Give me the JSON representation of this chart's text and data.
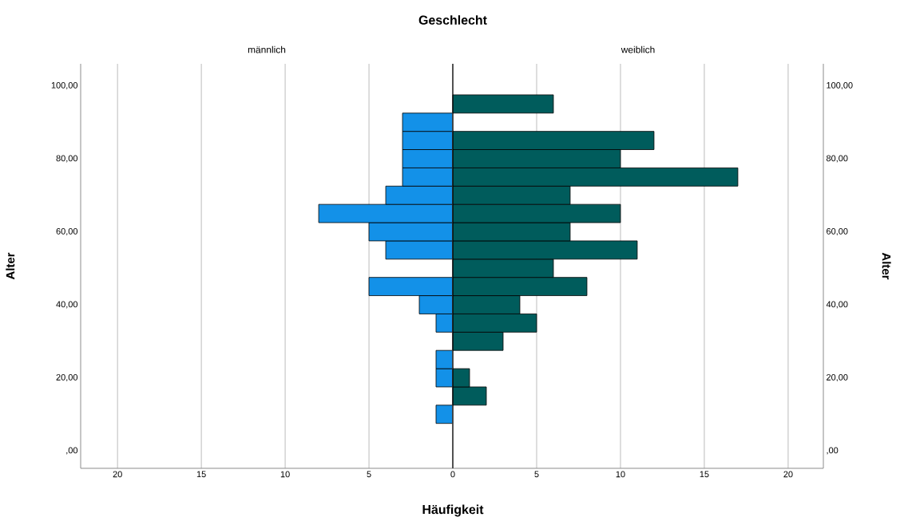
{
  "chart_data": [
    {
      "type": "histogram",
      "orientation": "horizontal",
      "title": "Geschlecht",
      "subtitle": "männlich",
      "xlabel": "Häufigkeit",
      "ylabel": "Alter",
      "color": "#1391e8",
      "bins": [
        7.5,
        12.5,
        17.5,
        22.5,
        27.5,
        32.5,
        37.5,
        42.5,
        47.5,
        52.5,
        57.5,
        62.5,
        67.5,
        72.5,
        77.5,
        82.5,
        87.5,
        92.5,
        97.5
      ],
      "values": [
        1,
        0,
        1,
        1,
        0,
        1,
        2,
        5,
        0,
        4,
        5,
        8,
        4,
        3,
        3,
        3,
        3,
        0
      ],
      "xlim": [
        22.2,
        0
      ],
      "xticks": [
        0,
        5,
        10,
        15,
        20
      ],
      "ylim": [
        -4.8,
        106
      ],
      "yticks": [
        {
          "value": 0,
          "label": ",00"
        },
        {
          "value": 20,
          "label": "20,00"
        },
        {
          "value": 40,
          "label": "40,00"
        },
        {
          "value": 60,
          "label": "60,00"
        },
        {
          "value": 80,
          "label": "80,00"
        },
        {
          "value": 100,
          "label": "100,00"
        }
      ],
      "grid": "x"
    },
    {
      "type": "histogram",
      "orientation": "horizontal",
      "subtitle": "weiblich",
      "ylabel": "Alter",
      "color": "#005c5c",
      "bins": [
        7.5,
        12.5,
        17.5,
        22.5,
        27.5,
        32.5,
        37.5,
        42.5,
        47.5,
        52.5,
        57.5,
        62.5,
        67.5,
        72.5,
        77.5,
        82.5,
        87.5,
        92.5,
        97.5
      ],
      "values": [
        0,
        2,
        1,
        0,
        3,
        5,
        4,
        8,
        6,
        11,
        7,
        10,
        7,
        17,
        10,
        12,
        0,
        6
      ],
      "xlim": [
        0,
        22.1
      ],
      "xticks": [
        {
          "value": 0,
          "label": null
        },
        5,
        10,
        15,
        20
      ],
      "ylim": [
        -4.8,
        106
      ],
      "yticks": [
        {
          "value": 0,
          "label": ",00"
        },
        {
          "value": 20,
          "label": "20,00"
        },
        {
          "value": 40,
          "label": "40,00"
        },
        {
          "value": 60,
          "label": "60,00"
        },
        {
          "value": 80,
          "label": "80,00"
        },
        {
          "value": 100,
          "label": "100,00"
        }
      ],
      "grid": "x"
    }
  ]
}
